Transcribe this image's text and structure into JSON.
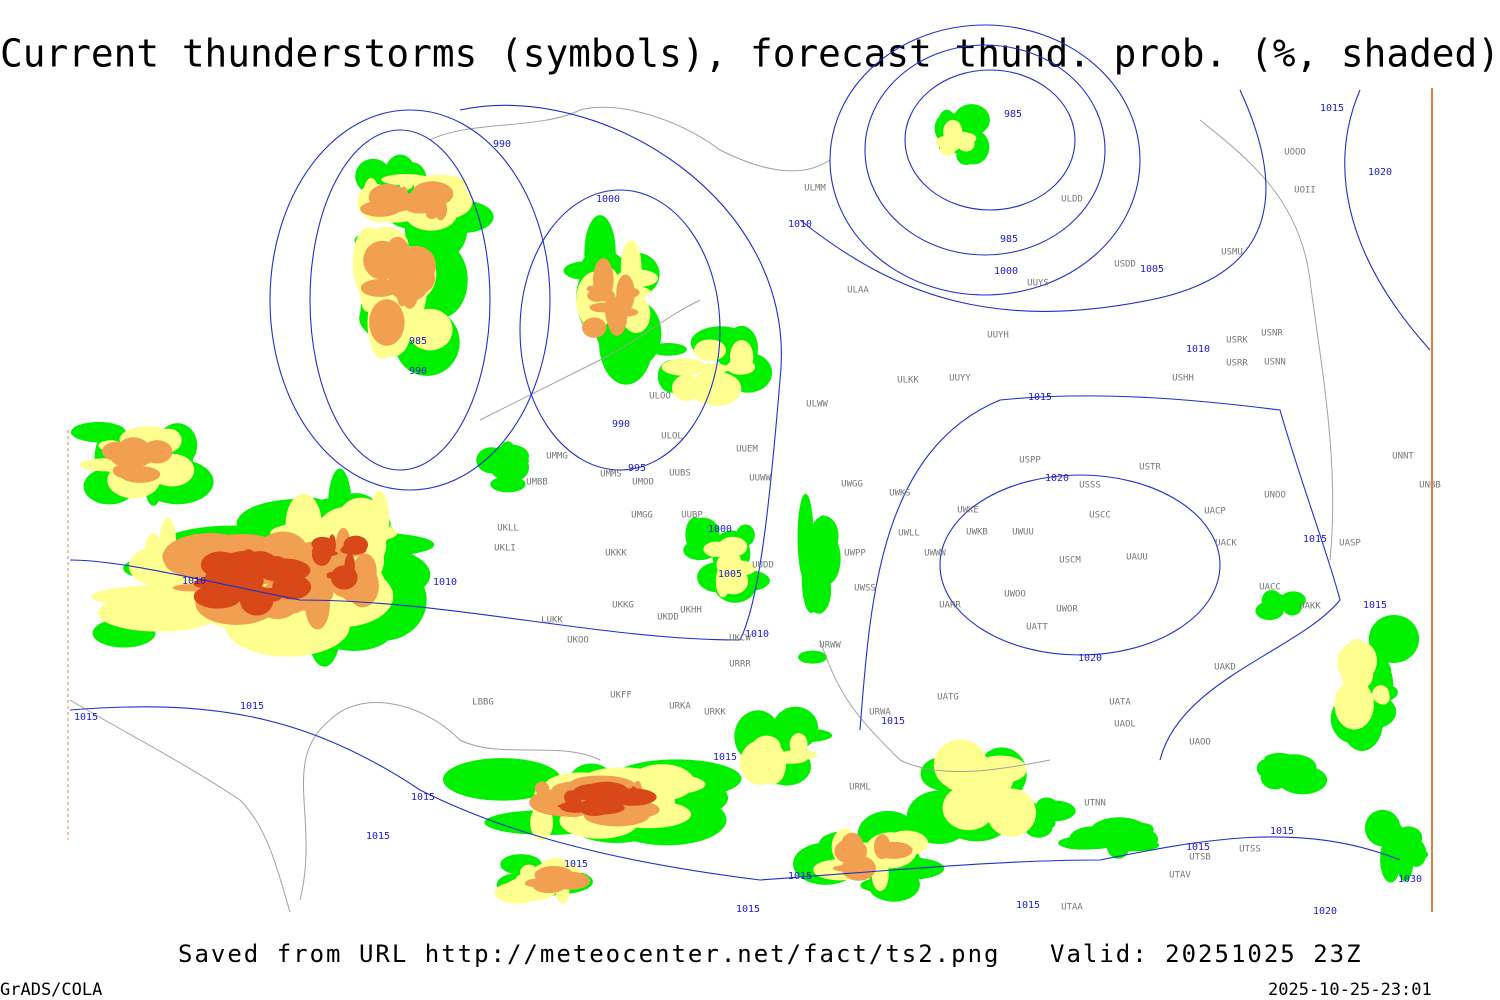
{
  "header": {
    "title": "Current thunderstorms (symbols), forecast thund. prob. (%, shaded)"
  },
  "map": {
    "isobar_labels": [
      990,
      1000,
      1010,
      985,
      985,
      1000,
      1005,
      1015,
      1020,
      985,
      990,
      1010,
      1015,
      990,
      995,
      1020,
      1000,
      1005,
      1010,
      1010,
      1015,
      1015,
      1010,
      1020,
      1015,
      1015,
      1015,
      1015,
      1015,
      1015,
      1015,
      1015,
      1015,
      1015,
      1030,
      1015,
      1020,
      1015
    ],
    "stations": [
      "ULMM",
      "ULAA",
      "UUYH",
      "ULKK",
      "UUYY",
      "USHH",
      "USMU",
      "USDD",
      "UUYS",
      "ULDD",
      "USRK",
      "USNR",
      "USRR",
      "USNN",
      "USPP",
      "USTR",
      "USSS",
      "UNOO",
      "UNBB",
      "UNNT",
      "USCC",
      "UACP",
      "UACK",
      "UASP",
      "UWKS",
      "UWGG",
      "UWKE",
      "UWKB",
      "UWUU",
      "UWLL",
      "UWWW",
      "UWPP",
      "USCM",
      "UAUU",
      "UWSS",
      "UWOO",
      "UWOR",
      "UARR",
      "UATT",
      "URWW",
      "UAKD",
      "UATG",
      "UATA",
      "URWA",
      "UAOL",
      "UAOO",
      "URML",
      "UTNN",
      "UTSB",
      "UTSS",
      "UTAV",
      "UTAA",
      "UACC",
      "UAKK",
      "UOOO",
      "UOII",
      "UMMS",
      "UMOO",
      "UUBS",
      "UMMG",
      "UMBB",
      "UMGG",
      "UUBP",
      "UKLL",
      "UKLI",
      "UKKK",
      "UKKG",
      "UKDD",
      "UKHH",
      "UKCW",
      "URRR",
      "UKFF",
      "URKA",
      "URKK",
      "LUKK",
      "UKOO",
      "LBBG",
      "UUEM",
      "UUWW",
      "UUDD",
      "ULOO",
      "ULOL",
      "ULWW"
    ]
  },
  "footer": {
    "source": "Saved from URL http://meteocenter.net/fact/ts2.png",
    "valid": "Valid: 20251025 23Z",
    "software": "GrADS/COLA",
    "timestamp": "2025-10-25-23:01"
  }
}
